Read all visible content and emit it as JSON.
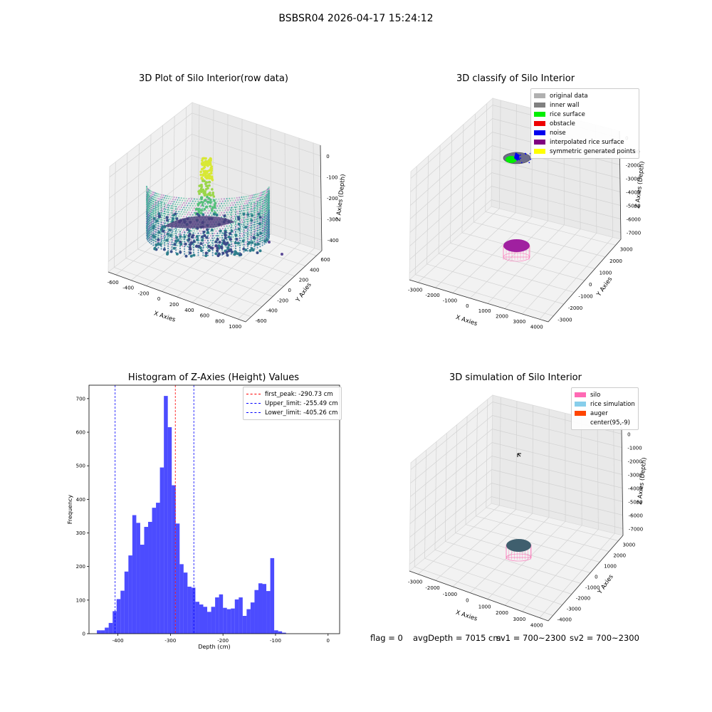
{
  "suptitle": "BSBSR04 2026-04-17 15:24:12",
  "panels": {
    "raw": {
      "title": "3D Plot of Silo Interior(row data)",
      "xlabel": "X Axies",
      "ylabel": "Y Axies",
      "zlabel": "Z Axies (Depth)",
      "xticks": [
        "-600",
        "-400",
        "-200",
        "0",
        "200",
        "400",
        "600",
        "800",
        "1000"
      ],
      "yticks": [
        "-600",
        "-400",
        "-200",
        "0",
        "200",
        "400",
        "600"
      ],
      "zticks": [
        "0",
        "-100",
        "-200",
        "-300",
        "-400"
      ]
    },
    "classify": {
      "title": "3D classify of Silo Interior",
      "xlabel": "X Axies",
      "ylabel": "Y Axies",
      "zlabel": "Z Axies (Depth)",
      "xticks": [
        "-3000",
        "-2000",
        "-1000",
        "0",
        "1000",
        "2000",
        "3000",
        "4000"
      ],
      "yticks": [
        "-3000",
        "-2000",
        "-1000",
        "0",
        "1000",
        "2000",
        "3000"
      ],
      "zticks": [
        "0",
        "-1000",
        "-2000",
        "-3000",
        "-4000",
        "-5000",
        "-6000",
        "-7000"
      ],
      "legend": [
        {
          "label": "original data",
          "color": "#b0b0b0"
        },
        {
          "label": "inner wall",
          "color": "#808080"
        },
        {
          "label": "rice surface",
          "color": "#00ee00"
        },
        {
          "label": "obstacle",
          "color": "#ee0000"
        },
        {
          "label": "noise",
          "color": "#0000ee"
        },
        {
          "label": "interpolated rice surface",
          "color": "#800080"
        },
        {
          "label": "symmetric generated points",
          "color": "#ffff00"
        }
      ]
    },
    "simulation": {
      "title": "3D simulation of Silo Interior",
      "xlabel": "X Axies",
      "ylabel": "Y Axies",
      "zlabel": "Z Axies (Depth)",
      "xticks": [
        "-3000",
        "-2000",
        "-1000",
        "0",
        "1000",
        "2000",
        "3000",
        "4000"
      ],
      "yticks": [
        "-4000",
        "-3000",
        "-2000",
        "-1000",
        "0",
        "1000",
        "2000",
        "3000"
      ],
      "zticks": [
        "0",
        "-1000",
        "-2000",
        "-3000",
        "-4000",
        "-5000",
        "-6000",
        "-7000"
      ],
      "legend": [
        {
          "label": "silo",
          "color": "#ff69b4"
        },
        {
          "label": "rice simulation",
          "color": "#87ceeb"
        },
        {
          "label": "auger",
          "color": "#ff4500"
        },
        {
          "label": "center(95,-9)",
          "color": ""
        }
      ]
    }
  },
  "status": {
    "flag": "flag = 0",
    "avg_depth": "avgDepth = 7015 cm",
    "sv1": "sv1 = 700~2300",
    "sv2": "sv2 = 700~2300"
  },
  "chart_data": [
    {
      "type": "histogram",
      "title": "Histogram of Z-Axies (Height) Values",
      "xlabel": "Depth (cm)",
      "ylabel": "Frequency",
      "xlim": [
        -455,
        22
      ],
      "ylim": [
        0,
        740
      ],
      "xticks": [
        -400,
        -300,
        -200,
        -100,
        0
      ],
      "yticks": [
        0,
        100,
        200,
        300,
        400,
        500,
        600,
        700
      ],
      "bin_start": -440,
      "bin_width": 7.5,
      "bar_color": "#0000ff",
      "values": [
        10,
        10,
        18,
        32,
        67,
        103,
        128,
        185,
        233,
        353,
        330,
        265,
        318,
        333,
        375,
        390,
        495,
        708,
        615,
        442,
        328,
        207,
        182,
        140,
        137,
        95,
        87,
        80,
        65,
        80,
        108,
        117,
        77,
        73,
        75,
        102,
        108,
        53,
        73,
        93,
        130,
        150,
        148,
        127,
        225,
        10,
        7,
        3
      ],
      "lines": [
        {
          "label": "first_peak: -290.73 cm",
          "x": -290.73,
          "color": "#ff0000"
        },
        {
          "label": "Upper_limit: -255.49 cm",
          "x": -255.49,
          "color": "#0000ff"
        },
        {
          "label": "Lower_limit: -405.26 cm",
          "x": -405.26,
          "color": "#0000ff"
        }
      ]
    }
  ]
}
